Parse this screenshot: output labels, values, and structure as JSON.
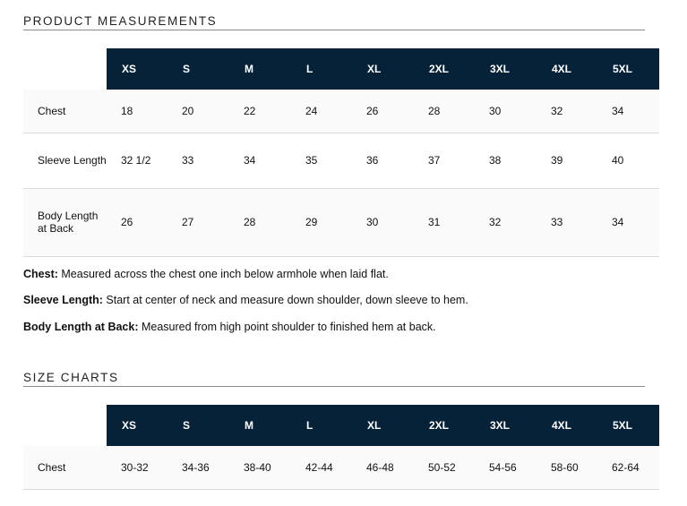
{
  "measurements": {
    "title": "PRODUCT MEASUREMENTS",
    "sizes": [
      "XS",
      "S",
      "M",
      "L",
      "XL",
      "2XL",
      "3XL",
      "4XL",
      "5XL"
    ],
    "rows": [
      {
        "label": "Chest",
        "values": [
          "18",
          "20",
          "22",
          "24",
          "26",
          "28",
          "30",
          "32",
          "34"
        ]
      },
      {
        "label": "Sleeve Length",
        "values": [
          "32 1/2",
          "33",
          "34",
          "35",
          "36",
          "37",
          "38",
          "39",
          "40"
        ]
      },
      {
        "label": "Body Length at Back",
        "values": [
          "26",
          "27",
          "28",
          "29",
          "30",
          "31",
          "32",
          "33",
          "34"
        ]
      }
    ]
  },
  "notes": [
    {
      "term": "Chest:",
      "text": " Measured across the chest one inch below armhole when laid flat."
    },
    {
      "term": "Sleeve Length:",
      "text": " Start at center of neck and measure down shoulder, down sleeve to hem."
    },
    {
      "term": "Body Length at Back:",
      "text": " Measured from high point shoulder to finished hem at back."
    }
  ],
  "size_charts": {
    "title": "SIZE CHARTS",
    "sizes": [
      "XS",
      "S",
      "M",
      "L",
      "XL",
      "2XL",
      "3XL",
      "4XL",
      "5XL"
    ],
    "rows": [
      {
        "label": "Chest",
        "values": [
          "30-32",
          "34-36",
          "38-40",
          "42-44",
          "46-48",
          "50-52",
          "54-56",
          "58-60",
          "62-64"
        ]
      }
    ]
  },
  "colors": {
    "header_background": "#052239",
    "header_text": "#ffffff",
    "row_divider": "#dcdcdc"
  }
}
